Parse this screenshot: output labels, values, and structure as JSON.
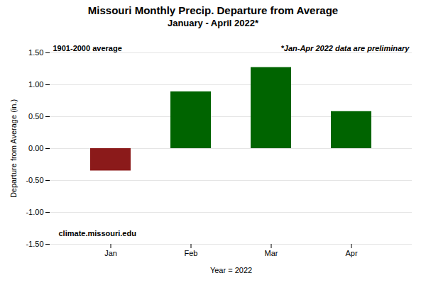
{
  "chart_data": {
    "type": "bar",
    "title": "Missouri Monthly Precip. Departure from Average",
    "subtitle": "January - April 2022*",
    "categories": [
      "Jan",
      "Feb",
      "Mar",
      "Apr"
    ],
    "values": [
      -0.35,
      0.89,
      1.27,
      0.58
    ],
    "colors": [
      "#8B1A1A",
      "#006400",
      "#006400",
      "#006400"
    ],
    "xlabel": "Year = 2022",
    "ylabel": "Departure from Average (in.)",
    "ylim": [
      -1.5,
      1.5
    ],
    "yticks": [
      {
        "value": -1.5,
        "label": "-1.50"
      },
      {
        "value": -1.0,
        "label": "-1.00"
      },
      {
        "value": -0.5,
        "label": "-0.50"
      },
      {
        "value": 0.0,
        "label": "0.00"
      },
      {
        "value": 0.5,
        "label": "0.50"
      },
      {
        "value": 1.0,
        "label": "1.00"
      },
      {
        "value": 1.5,
        "label": "1.50"
      }
    ],
    "grid": true,
    "annotations": [
      "1901-2000 average",
      "*Jan-Apr 2022 data are preliminary",
      "climate.missouri.edu"
    ]
  }
}
